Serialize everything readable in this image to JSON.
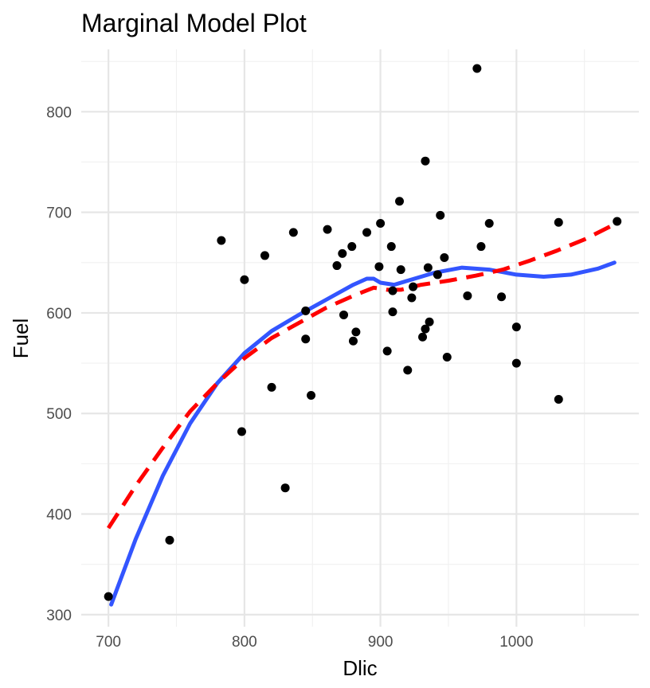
{
  "chart_data": {
    "type": "scatter",
    "title": "Marginal Model Plot",
    "xlabel": "Dlic",
    "ylabel": "Fuel",
    "xlim": [
      680,
      1090
    ],
    "ylim": [
      288,
      862
    ],
    "x_ticks": [
      700,
      800,
      900,
      1000
    ],
    "x_minor_ticks": [
      750,
      850,
      950,
      1050
    ],
    "y_ticks": [
      300,
      400,
      500,
      600,
      700,
      800
    ],
    "y_minor_ticks": [
      350,
      450,
      550,
      650,
      750,
      850
    ],
    "grid": true,
    "colors": {
      "points": "#000000",
      "smooth_data": "#3355ff",
      "smooth_model": "#ff0000",
      "grid": "#e6e6e6",
      "tick_text": "#4d4d4d"
    },
    "points": [
      {
        "x": 700,
        "y": 318
      },
      {
        "x": 745,
        "y": 374
      },
      {
        "x": 783,
        "y": 672
      },
      {
        "x": 798,
        "y": 482
      },
      {
        "x": 800,
        "y": 633
      },
      {
        "x": 815,
        "y": 657
      },
      {
        "x": 820,
        "y": 526
      },
      {
        "x": 830,
        "y": 426
      },
      {
        "x": 836,
        "y": 680
      },
      {
        "x": 845,
        "y": 602
      },
      {
        "x": 845,
        "y": 574
      },
      {
        "x": 849,
        "y": 518
      },
      {
        "x": 861,
        "y": 683
      },
      {
        "x": 868,
        "y": 647
      },
      {
        "x": 872,
        "y": 659
      },
      {
        "x": 873,
        "y": 598
      },
      {
        "x": 879,
        "y": 666
      },
      {
        "x": 880,
        "y": 572
      },
      {
        "x": 882,
        "y": 581
      },
      {
        "x": 890,
        "y": 680
      },
      {
        "x": 899,
        "y": 646
      },
      {
        "x": 900,
        "y": 689
      },
      {
        "x": 905,
        "y": 562
      },
      {
        "x": 908,
        "y": 666
      },
      {
        "x": 909,
        "y": 622
      },
      {
        "x": 909,
        "y": 601
      },
      {
        "x": 914,
        "y": 711
      },
      {
        "x": 915,
        "y": 643
      },
      {
        "x": 920,
        "y": 543
      },
      {
        "x": 923,
        "y": 615
      },
      {
        "x": 924,
        "y": 626
      },
      {
        "x": 931,
        "y": 576
      },
      {
        "x": 933,
        "y": 584
      },
      {
        "x": 933,
        "y": 751
      },
      {
        "x": 935,
        "y": 645
      },
      {
        "x": 936,
        "y": 591
      },
      {
        "x": 942,
        "y": 638
      },
      {
        "x": 944,
        "y": 697
      },
      {
        "x": 947,
        "y": 655
      },
      {
        "x": 949,
        "y": 556
      },
      {
        "x": 964,
        "y": 617
      },
      {
        "x": 971,
        "y": 843
      },
      {
        "x": 974,
        "y": 666
      },
      {
        "x": 980,
        "y": 689
      },
      {
        "x": 989,
        "y": 616
      },
      {
        "x": 1000,
        "y": 586
      },
      {
        "x": 1000,
        "y": 550
      },
      {
        "x": 1031,
        "y": 514
      },
      {
        "x": 1031,
        "y": 690
      },
      {
        "x": 1074,
        "y": 691
      }
    ],
    "series": [
      {
        "style": "solid",
        "color": "#3355ff",
        "x": [
          702,
          720,
          740,
          760,
          780,
          800,
          820,
          840,
          860,
          880,
          890,
          895,
          900,
          910,
          920,
          940,
          960,
          980,
          1000,
          1020,
          1040,
          1060,
          1072
        ],
        "y": [
          310,
          375,
          438,
          490,
          530,
          560,
          582,
          598,
          613,
          628,
          634,
          634,
          630,
          628,
          632,
          640,
          645,
          643,
          638,
          636,
          638,
          644,
          650
        ]
      },
      {
        "style": "dashed",
        "color": "#ff0000",
        "x": [
          700,
          720,
          740,
          760,
          780,
          800,
          820,
          840,
          860,
          880,
          895,
          905,
          915,
          930,
          950,
          970,
          990,
          1010,
          1030,
          1050,
          1072
        ],
        "y": [
          386,
          428,
          466,
          502,
          530,
          555,
          575,
          590,
          605,
          617,
          625,
          623,
          623,
          628,
          632,
          637,
          643,
          652,
          662,
          673,
          688
        ]
      }
    ]
  }
}
